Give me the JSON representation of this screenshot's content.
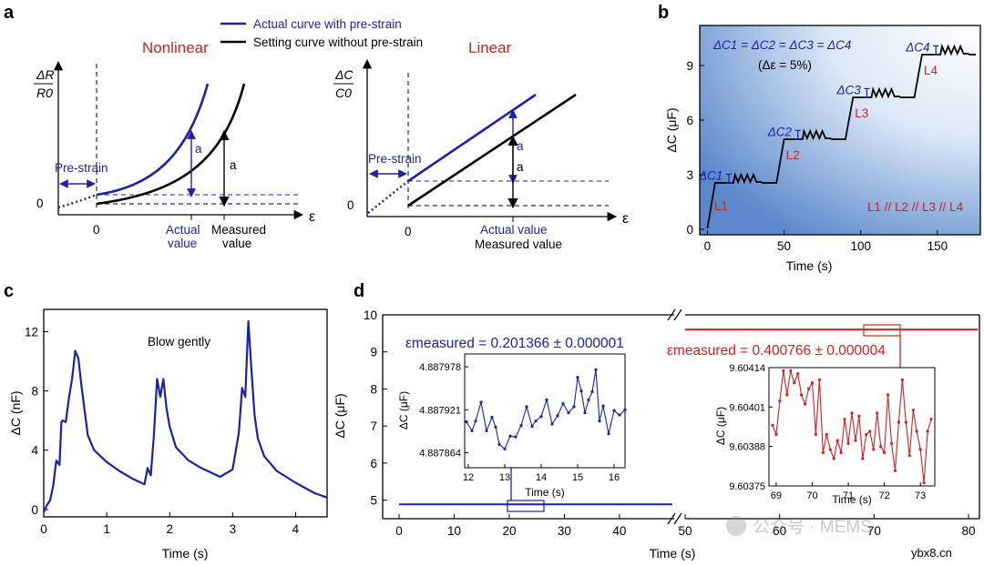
{
  "colors": {
    "blue": "#2020a8",
    "black": "#000000",
    "red": "#d42020",
    "axis": "#000000"
  },
  "panels": {
    "a": "a",
    "b": "b",
    "c": "c",
    "d": "d"
  },
  "watermark": {
    "wechat": "公众号 · MEMS",
    "site": "ybx8.cn"
  },
  "chart_data": [
    {
      "id": "a-left",
      "type": "line",
      "title": "Nonlinear",
      "ylabel_num": "ΔR",
      "ylabel_den": "R0",
      "xlabel": "ε",
      "ticks_x": [
        "0"
      ],
      "ticks_y": [
        "0"
      ],
      "legend": [
        "Actual curve with pre-strain",
        "Setting curve without pre-strain"
      ],
      "annotations": {
        "prestrain": "Pre-strain",
        "a": "a",
        "actual1": "Actual",
        "actual2": "value",
        "measured1": "Measured",
        "measured2": "value"
      }
    },
    {
      "id": "a-right",
      "type": "line",
      "title": "Linear",
      "ylabel_num": "ΔC",
      "ylabel_den": "C0",
      "xlabel": "ε",
      "ticks_x": [
        "0"
      ],
      "ticks_y": [
        "0"
      ],
      "annotations": {
        "prestrain": "Pre-strain",
        "a": "a",
        "actual": "Actual value",
        "measured": "Measured value"
      }
    },
    {
      "id": "b",
      "type": "line",
      "xlabel": "Time (s)",
      "ylabel": "ΔC (μF)",
      "xlim": [
        -5,
        178
      ],
      "ylim": [
        -0.3,
        11.2
      ],
      "xticks": [
        0,
        50,
        100,
        150
      ],
      "yticks": [
        0,
        3,
        6,
        9
      ],
      "equation": "ΔC1 = ΔC2 = ΔC3 = ΔC4",
      "condition": "(Δε = 5%)",
      "relation": "L1 // L2 // L3 // L4",
      "steps": [
        {
          "label": "ΔC1",
          "line": "L1",
          "t_start": 5,
          "t_end": 45,
          "level": 2.55
        },
        {
          "label": "ΔC2",
          "line": "L2",
          "t_start": 50,
          "t_end": 90,
          "level": 4.95
        },
        {
          "label": "ΔC3",
          "line": "L3",
          "t_start": 95,
          "t_end": 135,
          "level": 7.25
        },
        {
          "label": "ΔC4",
          "line": "L4",
          "t_start": 140,
          "t_end": 175,
          "level": 9.6
        }
      ]
    },
    {
      "id": "c",
      "type": "line",
      "xlabel": "Time (s)",
      "ylabel": "ΔC (nF)",
      "xlim": [
        0,
        4.5
      ],
      "ylim": [
        -0.5,
        13.5
      ],
      "xticks": [
        0,
        1,
        2,
        3,
        4
      ],
      "yticks": [
        0,
        4,
        8,
        12
      ],
      "annotation": "Blow gently",
      "x": [
        0,
        0.05,
        0.1,
        0.15,
        0.2,
        0.25,
        0.28,
        0.3,
        0.35,
        0.4,
        0.45,
        0.5,
        0.55,
        0.6,
        0.7,
        0.8,
        1.0,
        1.2,
        1.4,
        1.6,
        1.65,
        1.7,
        1.75,
        1.8,
        1.85,
        1.9,
        1.95,
        2.0,
        2.1,
        2.3,
        2.5,
        2.8,
        3.0,
        3.1,
        3.15,
        3.2,
        3.25,
        3.3,
        3.35,
        3.4,
        3.5,
        3.7,
        4.0,
        4.3,
        4.5
      ],
      "y": [
        -0.2,
        0.3,
        0.6,
        1.6,
        3.3,
        3.0,
        5.9,
        6.0,
        5.9,
        7.5,
        8.8,
        10.7,
        10.2,
        8.3,
        5.0,
        4.0,
        3.2,
        2.6,
        2.1,
        1.7,
        2.8,
        2.3,
        5.0,
        8.8,
        7.6,
        8.8,
        6.8,
        5.6,
        4.2,
        3.3,
        2.8,
        2.2,
        2.7,
        5.2,
        8.2,
        7.6,
        12.7,
        9.3,
        6.3,
        4.8,
        3.6,
        2.6,
        1.8,
        1.1,
        0.8
      ]
    },
    {
      "id": "d",
      "type": "line",
      "xlabel": "Time (s)",
      "ylabel": "ΔC (μF)",
      "ylim": [
        4.5,
        10
      ],
      "yticks": [
        5,
        6,
        7,
        8,
        9,
        10
      ],
      "xticks_left": [
        0,
        10,
        20,
        30,
        40
      ],
      "xticks_right": [
        50,
        60,
        70,
        80
      ],
      "series": [
        {
          "x_range": [
            0,
            49.6
          ],
          "value": 4.887921,
          "label": "εmeasured = 0.201366 ± 0.000001"
        },
        {
          "x_range": [
            50,
            81
          ],
          "value": 9.60401,
          "label": "εmeasured = 0.400766 ± 0.000004"
        }
      ]
    },
    {
      "id": "d-inset-1",
      "type": "line",
      "xlabel": "Time (s)",
      "ylabel": "ΔC (μF)",
      "xlim": [
        11.9,
        16.3
      ],
      "ylim": [
        4.887844,
        4.887995
      ],
      "xticks": [
        12,
        13,
        14,
        15,
        16
      ],
      "yticks": [
        "4.887864",
        "4.887921",
        "4.887978"
      ],
      "x": [
        11.95,
        12.1,
        12.2,
        12.35,
        12.5,
        12.65,
        12.75,
        12.85,
        13.0,
        13.15,
        13.3,
        13.45,
        13.6,
        13.75,
        13.85,
        14.0,
        14.15,
        14.3,
        14.45,
        14.6,
        14.75,
        14.9,
        15.0,
        15.1,
        15.2,
        15.3,
        15.4,
        15.5,
        15.6,
        15.7,
        15.85,
        16.0,
        16.15,
        16.3
      ],
      "y": [
        4.887905,
        4.887893,
        4.887906,
        4.887931,
        4.887893,
        4.887911,
        4.887898,
        4.887875,
        4.887869,
        4.887886,
        4.887885,
        4.8879,
        4.887925,
        4.887899,
        4.887906,
        4.887912,
        4.887934,
        4.887902,
        4.887913,
        4.887929,
        4.887917,
        4.887925,
        4.887964,
        4.887946,
        4.887917,
        4.887934,
        4.887945,
        4.887974,
        4.887906,
        4.887926,
        4.887889,
        4.88792,
        4.887914,
        4.887921
      ]
    },
    {
      "id": "d-inset-2",
      "type": "line",
      "xlabel": "Time (s)",
      "ylabel": "ΔC (μF)",
      "xlim": [
        68.8,
        73.4
      ],
      "ylim": [
        9.60375,
        9.60414
      ],
      "xticks": [
        69,
        70,
        71,
        72,
        73
      ],
      "yticks": [
        "9.60375",
        "9.60388",
        "9.60401",
        "9.60414"
      ],
      "x": [
        68.9,
        69.0,
        69.1,
        69.2,
        69.3,
        69.4,
        69.5,
        69.6,
        69.7,
        69.8,
        69.9,
        70.0,
        70.1,
        70.2,
        70.3,
        70.4,
        70.5,
        70.6,
        70.7,
        70.8,
        70.9,
        71.0,
        71.1,
        71.2,
        71.3,
        71.4,
        71.5,
        71.6,
        71.7,
        71.8,
        71.9,
        72.0,
        72.1,
        72.2,
        72.3,
        72.4,
        72.5,
        72.6,
        72.7,
        72.8,
        72.9,
        73.0,
        73.1,
        73.2,
        73.3
      ],
      "y": [
        9.60395,
        9.60392,
        9.60403,
        9.60413,
        9.60405,
        9.60413,
        9.60409,
        9.60412,
        9.60405,
        9.60402,
        9.60407,
        9.60409,
        9.60392,
        9.6041,
        9.60386,
        9.60392,
        9.60387,
        9.60384,
        9.6039,
        9.60386,
        9.60397,
        9.60389,
        9.60399,
        9.6039,
        9.60398,
        9.60384,
        9.60392,
        9.60393,
        9.60387,
        9.60399,
        9.60388,
        9.60386,
        9.60405,
        9.60389,
        9.6038,
        9.60396,
        9.6041,
        9.60396,
        9.60385,
        9.604,
        9.60393,
        9.60387,
        9.60376,
        9.60393,
        9.60397
      ]
    }
  ]
}
